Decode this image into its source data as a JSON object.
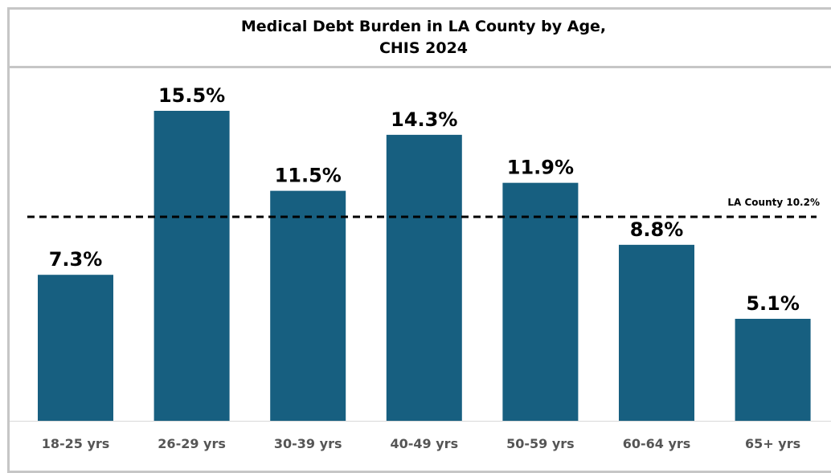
{
  "chart_data": {
    "type": "bar",
    "title_line1": "Medical Debt Burden in LA County by Age,",
    "title_line2": "CHIS 2024",
    "categories": [
      "18-25 yrs",
      "26-29 yrs",
      "30-39 yrs",
      "40-49 yrs",
      "50-59 yrs",
      "60-64 yrs",
      "65+ yrs"
    ],
    "values": [
      7.3,
      15.5,
      11.5,
      14.3,
      11.9,
      8.8,
      5.1
    ],
    "value_labels": [
      "7.3%",
      "15.5%",
      "11.5%",
      "14.3%",
      "11.9%",
      "8.8%",
      "5.1%"
    ],
    "reference_line": {
      "value": 10.2,
      "label": "LA County 10.2%",
      "style": "dashed"
    },
    "bar_color": "#175f80",
    "xlabel": "",
    "ylabel": "",
    "ylim": [
      0,
      17
    ],
    "grid": false,
    "legend": "none"
  }
}
